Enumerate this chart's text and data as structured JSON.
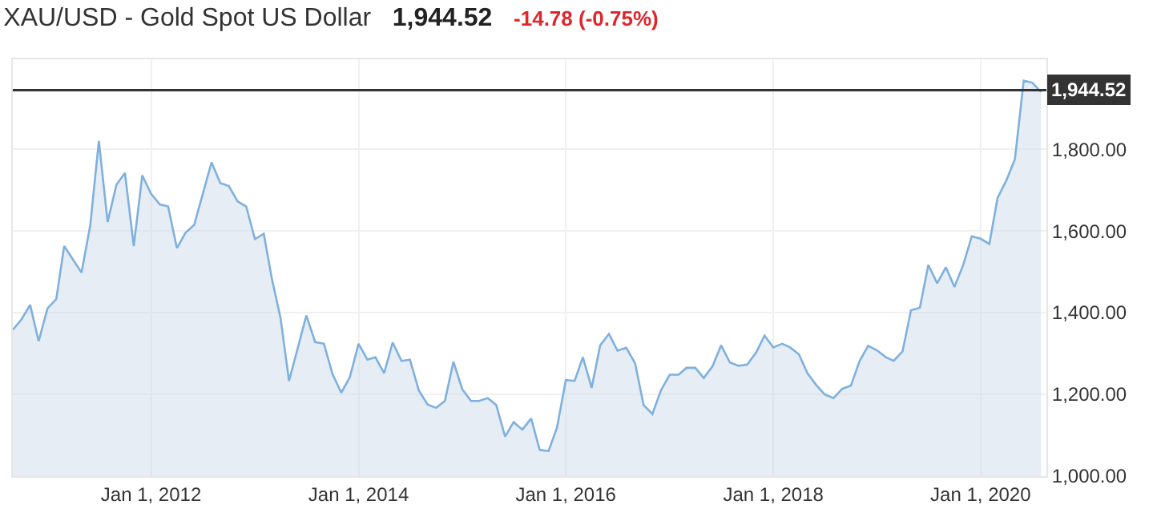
{
  "chart_data": {
    "type": "area",
    "title": "XAU/USD - Gold Spot US Dollar",
    "annotations": [
      "1,944.52",
      "-14.78 (-0.75%)"
    ],
    "x": [
      "2010-09",
      "2010-10",
      "2010-11",
      "2010-12",
      "2011-01",
      "2011-02",
      "2011-03",
      "2011-05",
      "2011-06",
      "2011-07",
      "2011-08",
      "2011-09",
      "2011-10",
      "2011-11",
      "2011-12",
      "2012-01",
      "2012-02",
      "2012-03",
      "2012-04",
      "2012-05",
      "2012-06",
      "2012-08",
      "2012-09",
      "2012-10",
      "2012-11",
      "2012-12",
      "2013-01",
      "2013-02",
      "2013-03",
      "2013-04",
      "2013-05",
      "2013-07",
      "2013-08",
      "2013-09",
      "2013-10",
      "2013-11",
      "2013-12",
      "2014-01",
      "2014-02",
      "2014-03",
      "2014-04",
      "2014-05",
      "2014-06",
      "2014-07",
      "2014-08",
      "2014-09",
      "2014-10",
      "2014-11",
      "2014-12",
      "2015-01",
      "2015-02",
      "2015-03",
      "2015-04",
      "2015-05",
      "2015-06",
      "2015-07",
      "2015-08",
      "2015-09",
      "2015-10",
      "2015-11",
      "2015-12",
      "2016-01",
      "2016-02",
      "2016-03",
      "2016-04",
      "2016-05",
      "2016-06",
      "2016-07",
      "2016-08",
      "2016-09",
      "2016-10",
      "2016-11",
      "2016-12",
      "2017-01",
      "2017-02",
      "2017-03",
      "2017-04",
      "2017-05",
      "2017-06",
      "2017-07",
      "2017-08",
      "2017-09",
      "2017-10",
      "2017-11",
      "2017-12",
      "2018-01",
      "2018-02",
      "2018-03",
      "2018-04",
      "2018-05",
      "2018-06",
      "2018-07",
      "2018-08",
      "2018-09",
      "2018-10",
      "2018-11",
      "2018-12",
      "2019-01",
      "2019-02",
      "2019-03",
      "2019-04",
      "2019-05",
      "2019-06",
      "2019-07",
      "2019-08",
      "2019-09",
      "2019-10",
      "2019-11",
      "2019-12",
      "2020-01",
      "2020-02",
      "2020-03",
      "2020-04",
      "2020-05",
      "2020-06",
      "2020-07",
      "2020-08"
    ],
    "series": [
      {
        "color": "#7fb0de",
        "values": [
          1358,
          1383,
          1419,
          1330,
          1410,
          1433,
          1563,
          1498,
          1615,
          1820,
          1622,
          1713,
          1742,
          1563,
          1736,
          1691,
          1665,
          1660,
          1558,
          1595,
          1615,
          1768,
          1717,
          1710,
          1672,
          1660,
          1580,
          1593,
          1485,
          1387,
          1233,
          1393,
          1328,
          1324,
          1250,
          1204,
          1242,
          1324,
          1285,
          1291,
          1252,
          1327,
          1282,
          1285,
          1210,
          1175,
          1167,
          1184,
          1280,
          1213,
          1184,
          1184,
          1191,
          1174,
          1097,
          1132,
          1114,
          1141,
          1064,
          1061,
          1119,
          1235,
          1233,
          1291,
          1216,
          1320,
          1348,
          1307,
          1314,
          1276,
          1174,
          1152,
          1210,
          1248,
          1248,
          1265,
          1265,
          1240,
          1269,
          1320,
          1278,
          1270,
          1273,
          1302,
          1344,
          1315,
          1324,
          1315,
          1298,
          1252,
          1223,
          1200,
          1191,
          1214,
          1221,
          1282,
          1319,
          1308,
          1291,
          1282,
          1305,
          1406,
          1412,
          1517,
          1472,
          1511,
          1463,
          1517,
          1587,
          1581,
          1568,
          1681,
          1724,
          1776,
          1968,
          1963,
          1940
        ]
      }
    ],
    "xlim": [
      "2010-09-01",
      "2020-08-20"
    ],
    "xticks": [
      {
        "value": "2012-01-01",
        "label": "Jan 1, 2012"
      },
      {
        "value": "2014-01-01",
        "label": "Jan 1, 2014"
      },
      {
        "value": "2016-01-01",
        "label": "Jan 1, 2016"
      },
      {
        "value": "2018-01-01",
        "label": "Jan 1, 2018"
      },
      {
        "value": "2020-01-01",
        "label": "Jan 1, 2020"
      }
    ],
    "ylim": [
      1000,
      2020
    ],
    "yticks": [
      {
        "value": 1000,
        "label": "1,000.00"
      },
      {
        "value": 1200,
        "label": "1,200.00"
      },
      {
        "value": 1400,
        "label": "1,400.00"
      },
      {
        "value": 1600,
        "label": "1,600.00"
      },
      {
        "value": 1800,
        "label": "1,800.00"
      }
    ],
    "ref_lines": [
      {
        "axis": "y",
        "value": 1944.52,
        "label": "1,944.52",
        "color": "#333333"
      }
    ],
    "grid": true,
    "legend": false
  }
}
